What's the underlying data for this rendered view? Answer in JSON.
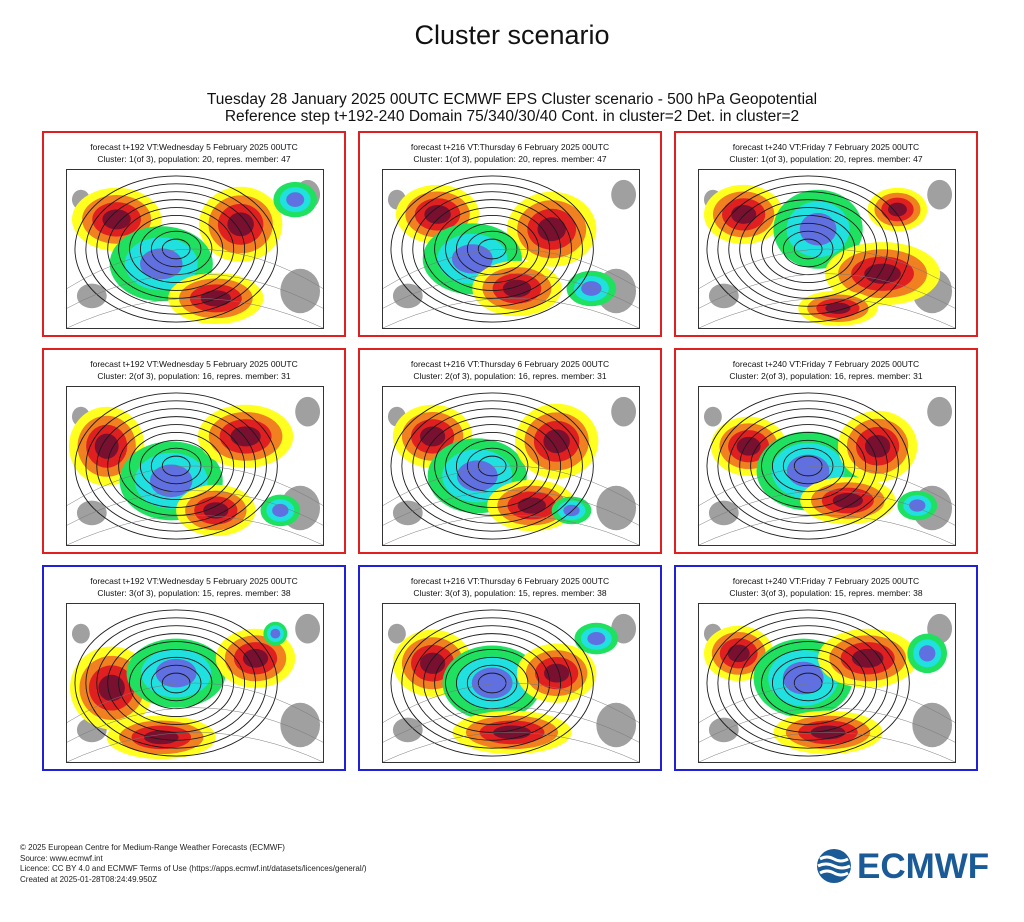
{
  "page_title": "Cluster scenario",
  "main_title": {
    "line1": "Tuesday 28 January 2025 00UTC ECMWF EPS Cluster scenario - 500 hPa Geopotential",
    "line2": "Reference step t+192-240 Domain 75/340/30/40 Cont. in cluster=2 Det. in cluster=2"
  },
  "colors": {
    "cluster_1_border": "#e02020",
    "cluster_2_border": "#e02020",
    "cluster_3_border": "#2020d8",
    "anomaly_deep_positive": "#7a1030",
    "anomaly_positive": "#e02020",
    "anomaly_mild_positive": "#f08020",
    "anomaly_weak_positive": "#ffff20",
    "anomaly_weak_negative": "#20e060",
    "anomaly_negative": "#20e0e0",
    "anomaly_deep_negative": "#6070e0",
    "land_neutral": "#a0a0a0"
  },
  "chart_data": {
    "type": "heatmap",
    "title": "Tuesday 28 January 2025 00UTC ECMWF EPS Cluster scenario - 500 hPa Geopotential",
    "subtitle": "Reference step t+192-240 Domain 75/340/30/40 Cont. in cluster=2 Det. in cluster=2",
    "variable": "500 hPa Geopotential",
    "domain": "75/340/30/40",
    "reference_step": "t+192-240",
    "clusters": [
      {
        "cluster": 1,
        "of": 3,
        "population": 20,
        "represented_member": 47
      },
      {
        "cluster": 2,
        "of": 3,
        "population": 16,
        "represented_member": 31
      },
      {
        "cluster": 3,
        "of": 3,
        "population": 15,
        "represented_member": 38
      }
    ],
    "steps": [
      {
        "step": "t+192",
        "valid_time": "Wednesday 5 February 2025 00UTC"
      },
      {
        "step": "t+216",
        "valid_time": "Thursday 6 February 2025 00UTC"
      },
      {
        "step": "t+240",
        "valid_time": "Friday 7 February 2025 00UTC"
      }
    ],
    "panels": [
      {
        "line1": "forecast t+192 VT:Wednesday 5 February 2025 00UTC",
        "line2": "Cluster: 1(of 3), population: 20, repres. member: 47"
      },
      {
        "line1": "forecast t+216 VT:Thursday 6 February 2025 00UTC",
        "line2": "Cluster: 1(of 3), population: 20, repres. member: 47"
      },
      {
        "line1": "forecast t+240 VT:Friday 7 February 2025 00UTC",
        "line2": "Cluster: 1(of 3), population: 20, repres. member: 47"
      },
      {
        "line1": "forecast t+192 VT:Wednesday 5 February 2025 00UTC",
        "line2": "Cluster: 2(of 3), population: 16, repres. member: 31"
      },
      {
        "line1": "forecast t+216 VT:Thursday 6 February 2025 00UTC",
        "line2": "Cluster: 2(of 3), population: 16, repres. member: 31"
      },
      {
        "line1": "forecast t+240 VT:Friday 7 February 2025 00UTC",
        "line2": "Cluster: 2(of 3), population: 16, repres. member: 31"
      },
      {
        "line1": "forecast t+192 VT:Wednesday 5 February 2025 00UTC",
        "line2": "Cluster: 3(of 3), population: 15, repres. member: 38"
      },
      {
        "line1": "forecast t+216 VT:Thursday 6 February 2025 00UTC",
        "line2": "Cluster: 3(of 3), population: 15, repres. member: 38"
      },
      {
        "line1": "forecast t+240 VT:Friday 7 February 2025 00UTC",
        "line2": "Cluster: 3(of 3), population: 15, repres. member: 38"
      }
    ]
  },
  "footer": {
    "line1": "© 2025 European Centre for Medium-Range Weather Forecasts (ECMWF)",
    "line2": "Source: www.ecmwf.int",
    "line3": "Licence: CC BY 4.0 and ECMWF Terms of Use (https://apps.ecmwf.int/datasets/licences/general/)",
    "line4": "Created at 2025-01-28T08:24:49.950Z"
  },
  "logo": {
    "text": "ECMWF",
    "icon": "ecmwf-waves-icon",
    "color": "#1a5a96"
  }
}
